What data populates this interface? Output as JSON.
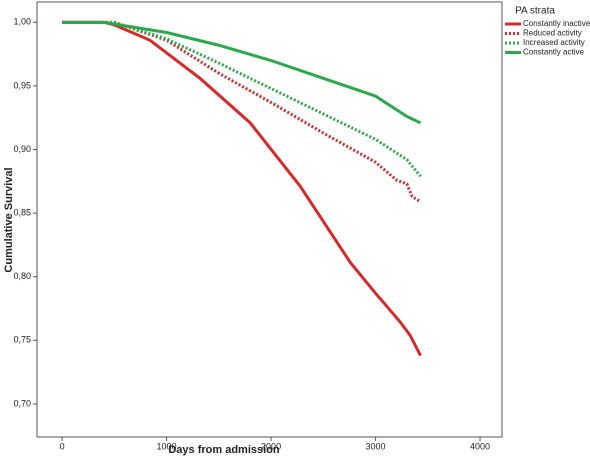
{
  "chart_data": {
    "type": "line",
    "xlabel": "Days from admission",
    "ylabel": "Cumulative Survival",
    "legend_title": "PA strata",
    "legend": "upper-right-outside",
    "xlim": [
      -240,
      4210
    ],
    "ylim": [
      0.674,
      1.016
    ],
    "xticks": [
      0,
      1000,
      2000,
      3000,
      4000
    ],
    "yticks": [
      {
        "value": 0.7,
        "label": "0,70"
      },
      {
        "value": 0.75,
        "label": "0,75"
      },
      {
        "value": 0.8,
        "label": "0,80"
      },
      {
        "value": 0.85,
        "label": "0,85"
      },
      {
        "value": 0.9,
        "label": "0,90"
      },
      {
        "value": 0.95,
        "label": "0,95"
      },
      {
        "value": 1.0,
        "label": "1,00"
      }
    ],
    "series": [
      {
        "name": "Constantly inactive",
        "color": "#d42a2a",
        "dashed": false,
        "x": [
          0,
          400,
          500,
          840,
          1320,
          1800,
          2280,
          2760,
          3000,
          3230,
          3330,
          3430
        ],
        "values": [
          1.0,
          1.0,
          0.998,
          0.986,
          0.956,
          0.921,
          0.871,
          0.811,
          0.787,
          0.765,
          0.754,
          0.738
        ]
      },
      {
        "name": "Reduced activity",
        "color": "#d42a2a",
        "dashed": true,
        "x": [
          0,
          500,
          1000,
          1500,
          2000,
          2500,
          3000,
          3200,
          3300,
          3350,
          3430
        ],
        "values": [
          1.0,
          1.0,
          0.986,
          0.96,
          0.937,
          0.913,
          0.89,
          0.876,
          0.873,
          0.863,
          0.859
        ]
      },
      {
        "name": "Increased activity",
        "color": "#2aa84a",
        "dashed": true,
        "x": [
          0,
          500,
          1000,
          1500,
          2000,
          2500,
          3000,
          3300,
          3430
        ],
        "values": [
          1.0,
          1.0,
          0.987,
          0.968,
          0.948,
          0.928,
          0.908,
          0.892,
          0.879
        ]
      },
      {
        "name": "Constantly active",
        "color": "#2aa84a",
        "dashed": false,
        "x": [
          0,
          400,
          1000,
          1500,
          2000,
          2500,
          3000,
          3300,
          3430
        ],
        "values": [
          1.0,
          1.0,
          0.992,
          0.982,
          0.97,
          0.956,
          0.942,
          0.926,
          0.921
        ]
      }
    ]
  }
}
